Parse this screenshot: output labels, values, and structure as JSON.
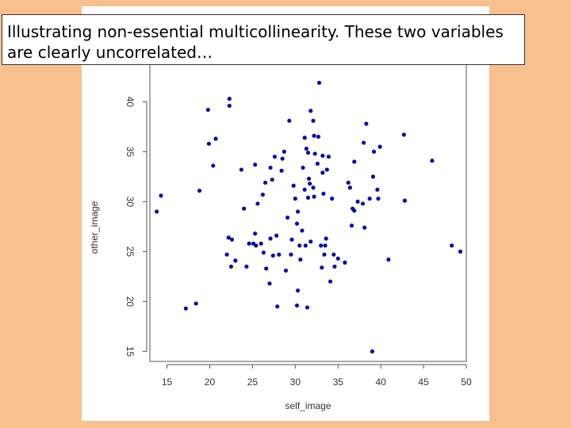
{
  "caption": "Illustrating non-essential multicollinearity. These two variables are clearly uncorrelated…",
  "colors": {
    "background": "#f9c08f",
    "point": "#0d0d9c",
    "axis": "#555555"
  },
  "chart_data": {
    "type": "scatter",
    "title": "",
    "xlabel": "self_image",
    "ylabel": "other_image",
    "xlim": [
      13,
      50
    ],
    "ylim": [
      14,
      44
    ],
    "xticks": [
      15,
      20,
      25,
      30,
      35,
      40,
      45,
      50
    ],
    "yticks": [
      15,
      20,
      25,
      30,
      35,
      40
    ],
    "grid": false,
    "points": [
      [
        13.8,
        29
      ],
      [
        14.3,
        30.6
      ],
      [
        17.2,
        19.3
      ],
      [
        18.4,
        19.8
      ],
      [
        18.8,
        31.1
      ],
      [
        19.8,
        39.2
      ],
      [
        19.9,
        35.8
      ],
      [
        20.4,
        33.6
      ],
      [
        20.7,
        36.3
      ],
      [
        22,
        24.7
      ],
      [
        22.2,
        26.4
      ],
      [
        22.3,
        40.3
      ],
      [
        22.3,
        39.6
      ],
      [
        22.5,
        23.5
      ],
      [
        22.6,
        26.2
      ],
      [
        23,
        24.1
      ],
      [
        23.7,
        33.2
      ],
      [
        24,
        29.3
      ],
      [
        24.3,
        23.5
      ],
      [
        24.6,
        25.8
      ],
      [
        25.1,
        25.8
      ],
      [
        25.3,
        26.8
      ],
      [
        25.3,
        33.7
      ],
      [
        25.4,
        25.6
      ],
      [
        25.6,
        29.8
      ],
      [
        26,
        25.8
      ],
      [
        26.2,
        30.7
      ],
      [
        26.3,
        24.9
      ],
      [
        26.5,
        31.9
      ],
      [
        26.6,
        23.3
      ],
      [
        27,
        21.8
      ],
      [
        27.1,
        26.3
      ],
      [
        27.1,
        33.4
      ],
      [
        27.3,
        32.2
      ],
      [
        27.4,
        24.6
      ],
      [
        27.6,
        34.5
      ],
      [
        27.8,
        26.6
      ],
      [
        27.9,
        19.5
      ],
      [
        28.1,
        24.7
      ],
      [
        28.4,
        33.1
      ],
      [
        28.5,
        34.3
      ],
      [
        28.7,
        35
      ],
      [
        28.9,
        23.1
      ],
      [
        29.1,
        28.4
      ],
      [
        29.3,
        38.1
      ],
      [
        29.5,
        24.7
      ],
      [
        29.6,
        26.2
      ],
      [
        29.8,
        31.6
      ],
      [
        30,
        30.3
      ],
      [
        30.2,
        27.8
      ],
      [
        30.2,
        19.6
      ],
      [
        30.3,
        21.1
      ],
      [
        30.3,
        29
      ],
      [
        30.5,
        25.6
      ],
      [
        30.6,
        24.2
      ],
      [
        30.8,
        27.1
      ],
      [
        30.9,
        33.4
      ],
      [
        31.1,
        31.2
      ],
      [
        31.1,
        36.4
      ],
      [
        31.2,
        25.6
      ],
      [
        31.3,
        35.3
      ],
      [
        31.4,
        19.4
      ],
      [
        31.5,
        30.4
      ],
      [
        31.5,
        34.9
      ],
      [
        31.6,
        32.3
      ],
      [
        31.7,
        31.8
      ],
      [
        31.8,
        26
      ],
      [
        31.8,
        39.1
      ],
      [
        32.1,
        38.1
      ],
      [
        32.1,
        31.4
      ],
      [
        32.2,
        36.6
      ],
      [
        32.2,
        30.5
      ],
      [
        32.3,
        34.8
      ],
      [
        32.6,
        33.8
      ],
      [
        32.7,
        36.5
      ],
      [
        32.8,
        41.9
      ],
      [
        33,
        25.6
      ],
      [
        33.1,
        23.4
      ],
      [
        33.2,
        32.9
      ],
      [
        33.2,
        34.6
      ],
      [
        33.3,
        30.8
      ],
      [
        33.4,
        24.7
      ],
      [
        33.5,
        25.6
      ],
      [
        33.6,
        26.3
      ],
      [
        33.7,
        33.2
      ],
      [
        33.9,
        34.5
      ],
      [
        34.1,
        22
      ],
      [
        34.3,
        30.3
      ],
      [
        34.5,
        24.7
      ],
      [
        34.6,
        23.5
      ],
      [
        35,
        24.3
      ],
      [
        35.8,
        23.9
      ],
      [
        36.2,
        31.9
      ],
      [
        36.4,
        31.4
      ],
      [
        36.6,
        27.6
      ],
      [
        36.7,
        29.3
      ],
      [
        36.9,
        29.1
      ],
      [
        36.9,
        34
      ],
      [
        37.3,
        30
      ],
      [
        37.9,
        29.8
      ],
      [
        38,
        35.9
      ],
      [
        38.1,
        27.4
      ],
      [
        38.3,
        37.8
      ],
      [
        38.7,
        30.3
      ],
      [
        39,
        15
      ],
      [
        39.1,
        32.5
      ],
      [
        39.2,
        35
      ],
      [
        39.6,
        31.2
      ],
      [
        39.7,
        30.3
      ],
      [
        39.9,
        35.5
      ],
      [
        40.9,
        24.2
      ],
      [
        42.7,
        36.7
      ],
      [
        42.8,
        30.1
      ],
      [
        46,
        34.1
      ],
      [
        48.3,
        25.6
      ],
      [
        49.3,
        25
      ]
    ]
  }
}
